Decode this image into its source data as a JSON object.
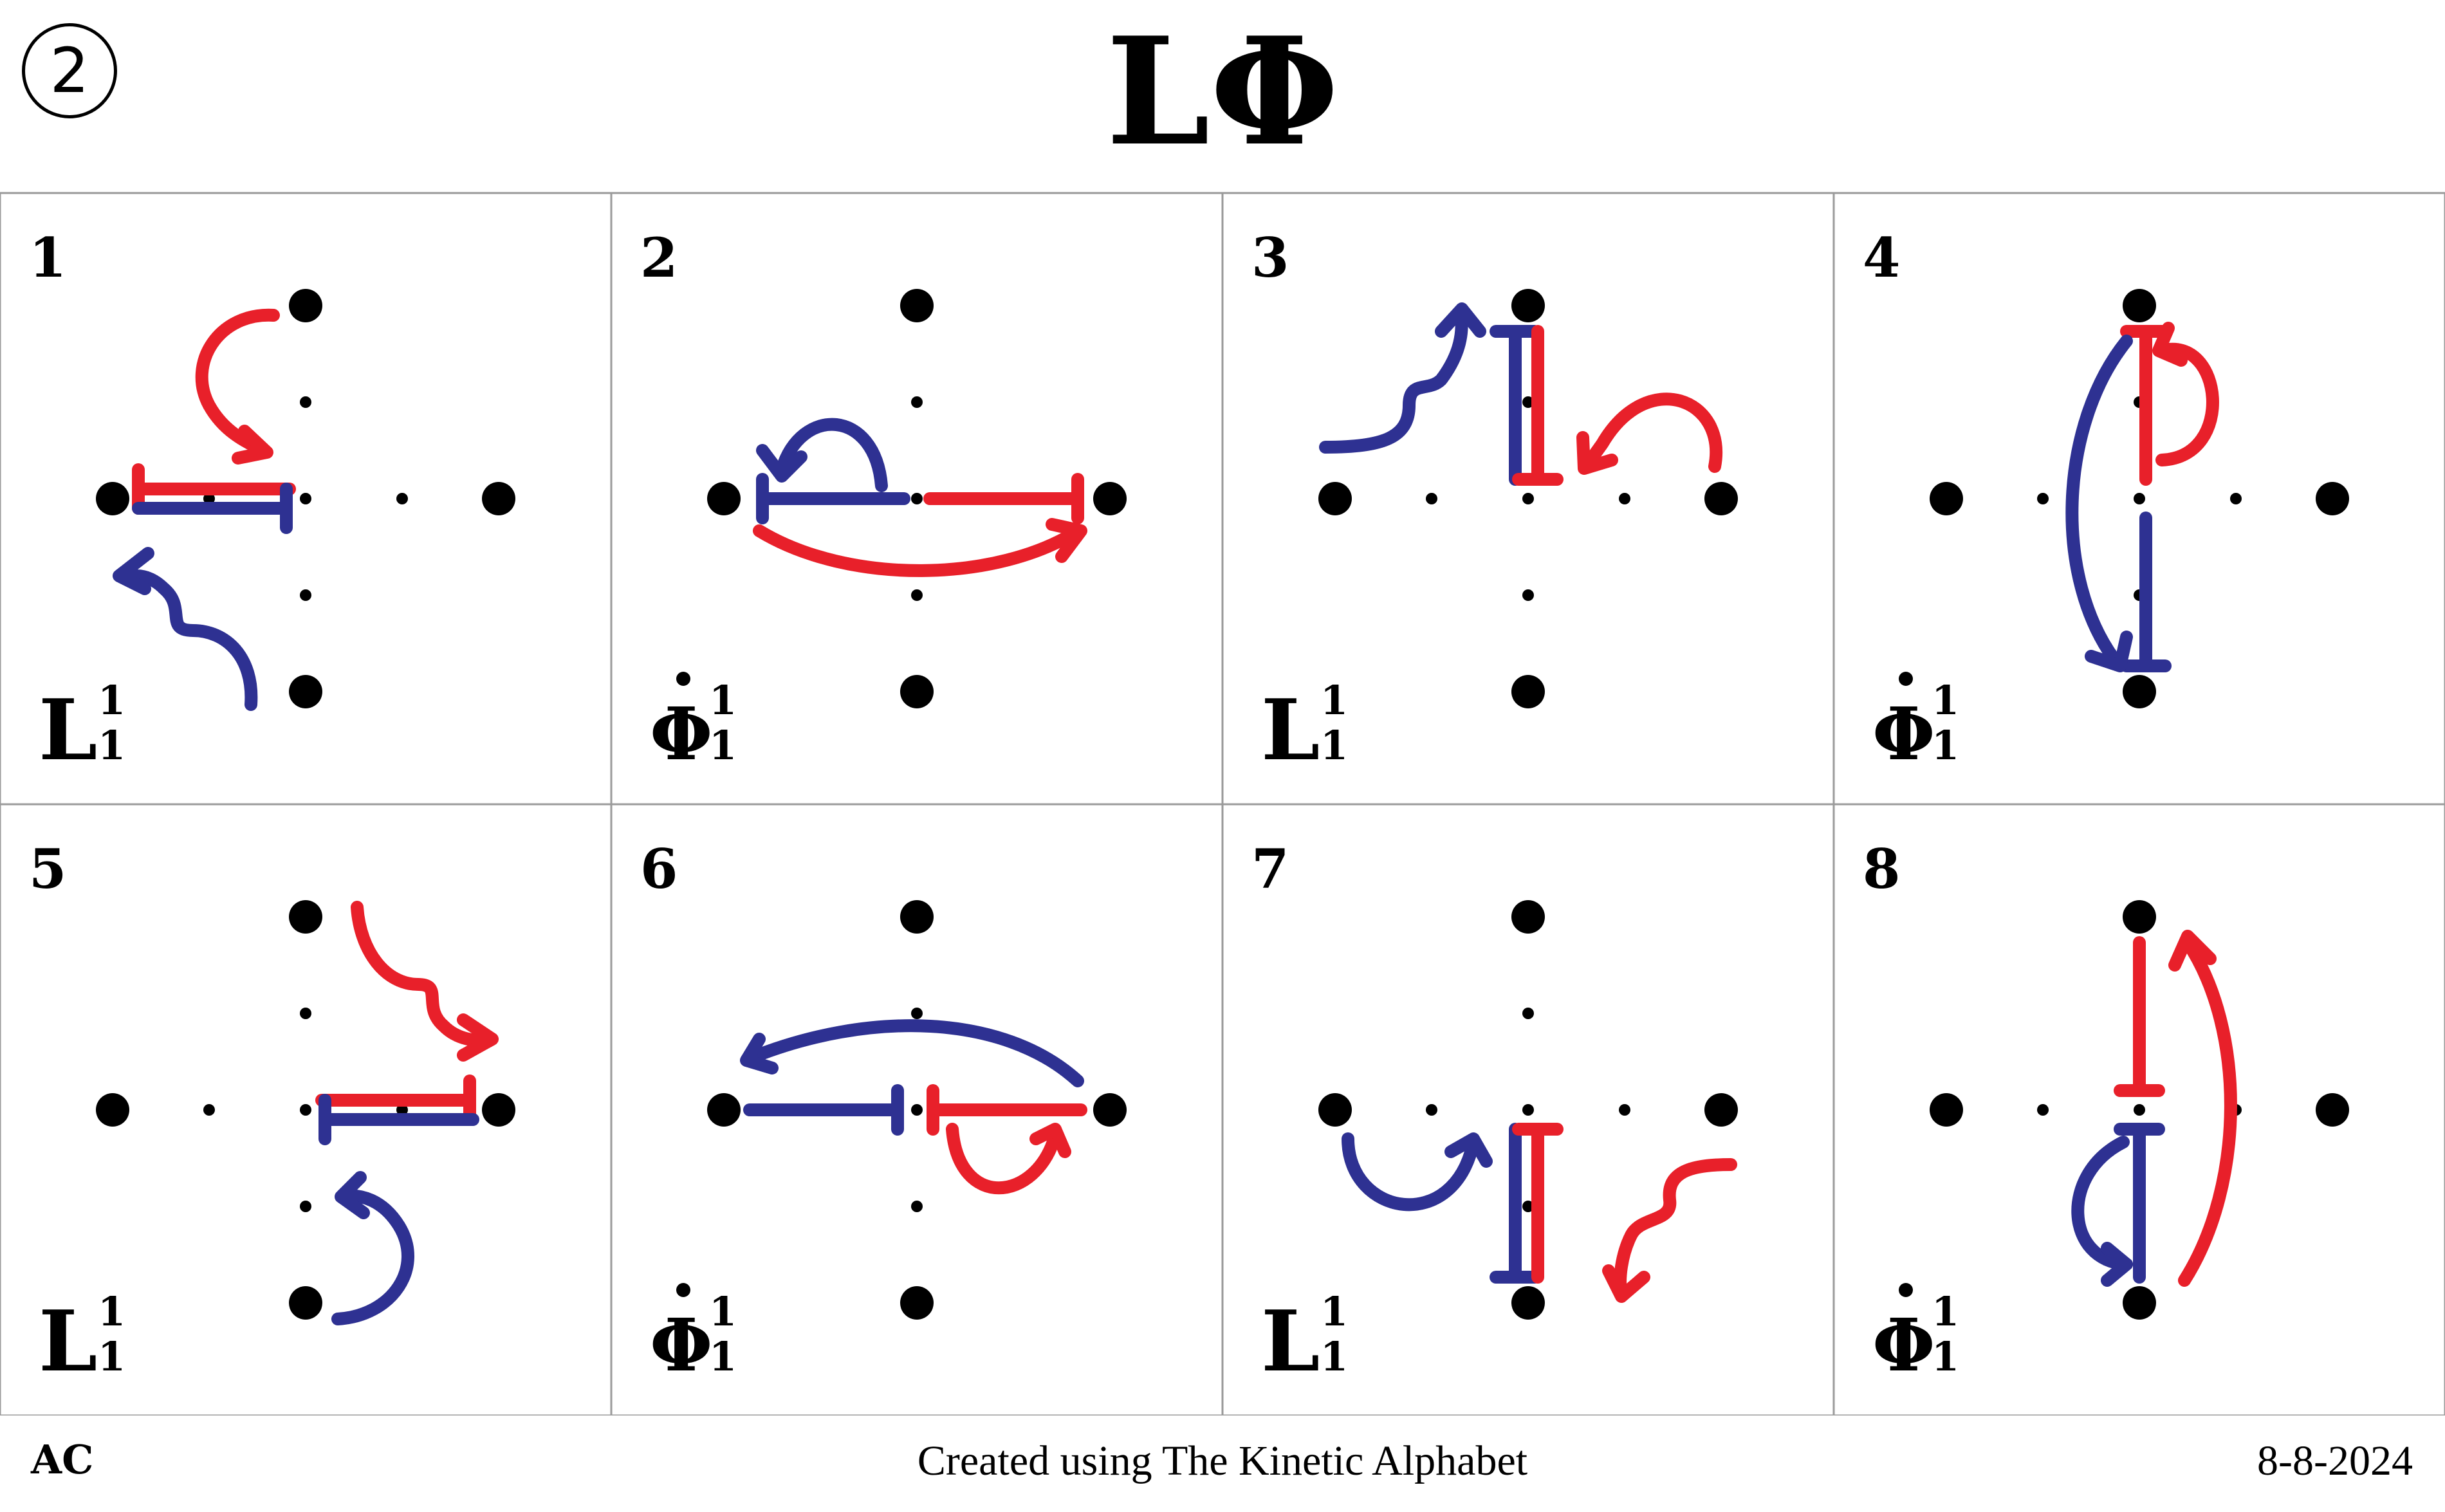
{
  "header": {
    "page_number": "2",
    "title": "LΦ"
  },
  "colors": {
    "red": "#e8202a",
    "blue": "#2e3192",
    "dot": "#000000",
    "grid_line": "#9a9a9a"
  },
  "cells": [
    {
      "number": "1",
      "letter": "L",
      "sub": "1",
      "sup": "1"
    },
    {
      "number": "2",
      "letter": "Φ",
      "sub": "1",
      "sup": "1"
    },
    {
      "number": "3",
      "letter": "L",
      "sub": "1",
      "sup": "1"
    },
    {
      "number": "4",
      "letter": "Φ",
      "sub": "1",
      "sup": "1"
    },
    {
      "number": "5",
      "letter": "L",
      "sub": "1",
      "sup": "1"
    },
    {
      "number": "6",
      "letter": "Φ",
      "sub": "1",
      "sup": "1"
    },
    {
      "number": "7",
      "letter": "L",
      "sub": "1",
      "sup": "1"
    },
    {
      "number": "8",
      "letter": "Φ",
      "sub": "1",
      "sup": "1"
    }
  ],
  "footer": {
    "left": "AC",
    "center": "Created using The Kinetic Alphabet",
    "right": "8-8-2024"
  }
}
